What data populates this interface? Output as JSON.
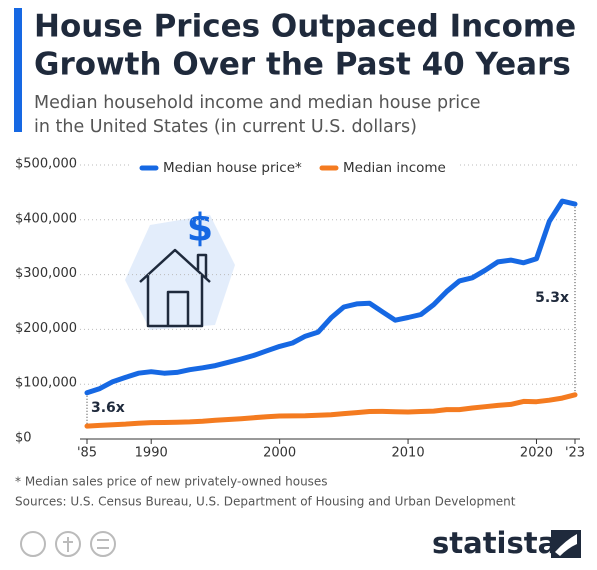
{
  "chart_data": {
    "type": "line",
    "title": [
      "House Prices Outpaced Income",
      "Growth Over the Past 40 Years"
    ],
    "subtitle": [
      "Median household income and median house price",
      "in the United States (in current U.S. dollars)"
    ],
    "x": [
      1985,
      1986,
      1987,
      1988,
      1989,
      1990,
      1991,
      1992,
      1993,
      1994,
      1995,
      1996,
      1997,
      1998,
      1999,
      2000,
      2001,
      2002,
      2003,
      2004,
      2005,
      2006,
      2007,
      2008,
      2009,
      2010,
      2011,
      2012,
      2013,
      2014,
      2015,
      2016,
      2017,
      2018,
      2019,
      2020,
      2021,
      2022,
      2023
    ],
    "series": [
      {
        "name": "Median house price*",
        "color": "#1668e3",
        "values": [
          84300,
          92000,
          104500,
          112500,
          120000,
          122900,
          120000,
          121500,
          126500,
          130000,
          133900,
          140000,
          146000,
          152500,
          161000,
          169000,
          175200,
          187600,
          195000,
          221000,
          240900,
          246500,
          247900,
          232100,
          216700,
          221800,
          227200,
          245200,
          268900,
          288500,
          294200,
          307800,
          323100,
          326400,
          321500,
          329000,
          397100,
          434100,
          428600
        ]
      },
      {
        "name": "Median income",
        "color": "#f47b20",
        "values": [
          23600,
          24900,
          26100,
          27200,
          28900,
          29900,
          30100,
          30600,
          31200,
          32300,
          34100,
          35500,
          37000,
          38900,
          40700,
          41990,
          42200,
          42400,
          43300,
          44300,
          46300,
          48200,
          50200,
          50300,
          49800,
          49300,
          50100,
          51000,
          53600,
          53700,
          56500,
          59000,
          61400,
          63200,
          68700,
          68000,
          70800,
          74600,
          80600
        ]
      }
    ],
    "xlim": [
      1985,
      2023
    ],
    "xticks": [
      {
        "value": 1985,
        "label": "'85"
      },
      1990,
      2000,
      2010,
      2020,
      {
        "value": 2023,
        "label": "'23"
      }
    ],
    "ylim": [
      0,
      500000
    ],
    "yticks": [
      {
        "value": 0,
        "label": "$0"
      },
      {
        "value": 100000,
        "label": "$100,000"
      },
      {
        "value": 200000,
        "label": "$200,000"
      },
      {
        "value": 300000,
        "label": "$300,000"
      },
      {
        "value": 400000,
        "label": "$400,000"
      },
      {
        "value": 500000,
        "label": "$500,000"
      }
    ],
    "grid": true,
    "legend": "top",
    "annotations": [
      {
        "text": "3.6x",
        "x": 1985
      },
      {
        "text": "5.3x",
        "x": 2023
      }
    ],
    "footnote": "* Median sales price of new privately-owned houses",
    "source": "Sources: U.S. Census Bureau, U.S. Department of Housing and Urban Development",
    "brand": "statista"
  }
}
